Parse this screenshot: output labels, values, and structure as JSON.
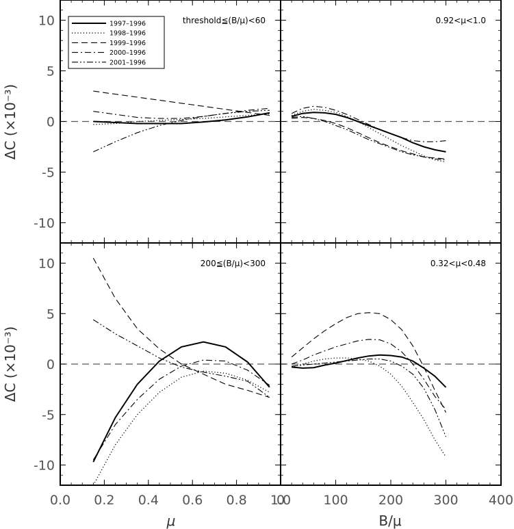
{
  "axes_titles": {
    "ylabel": "ΔC (×10⁻³)",
    "xlabel_left": "μ",
    "xlabel_right": "B/μ"
  },
  "chart_data": [
    {
      "type": "line",
      "panel": "top-left",
      "annotation": "threshold≦(B/μ)<60",
      "xlim": [
        0.0,
        1.0
      ],
      "ylim": [
        -12,
        12
      ],
      "yticks": [
        -10,
        -5,
        0,
        5,
        10
      ],
      "legend": "top-left",
      "series": [
        {
          "name": "1997–1996",
          "style": "solid",
          "x": [
            0.15,
            0.25,
            0.35,
            0.45,
            0.55,
            0.65,
            0.75,
            0.85,
            0.95
          ],
          "y": [
            0.0,
            -0.1,
            -0.2,
            -0.2,
            -0.2,
            -0.05,
            0.15,
            0.45,
            0.85
          ]
        },
        {
          "name": "1998–1996",
          "style": "dotted",
          "x": [
            0.15,
            0.25,
            0.35,
            0.45,
            0.55,
            0.65,
            0.75,
            0.85,
            0.95
          ],
          "y": [
            -0.3,
            -0.2,
            0.0,
            0.1,
            0.2,
            0.3,
            0.45,
            0.6,
            0.75
          ]
        },
        {
          "name": "1999–1996",
          "style": "dashed",
          "x": [
            0.15,
            0.25,
            0.35,
            0.45,
            0.55,
            0.65,
            0.75,
            0.85,
            0.95
          ],
          "y": [
            3.0,
            2.7,
            2.4,
            2.1,
            1.8,
            1.5,
            1.2,
            0.9,
            0.6
          ]
        },
        {
          "name": "2000–1996",
          "style": "dashdot",
          "x": [
            0.15,
            0.25,
            0.35,
            0.45,
            0.55,
            0.65,
            0.75,
            0.85,
            0.95
          ],
          "y": [
            1.0,
            0.7,
            0.4,
            0.3,
            0.3,
            0.5,
            0.8,
            1.1,
            1.3
          ]
        },
        {
          "name": "2001–1996",
          "style": "dashdotdot",
          "x": [
            0.15,
            0.25,
            0.35,
            0.45,
            0.55,
            0.65,
            0.75,
            0.85,
            0.95
          ],
          "y": [
            -3.0,
            -2.0,
            -1.1,
            -0.4,
            0.1,
            0.5,
            0.8,
            1.0,
            1.1
          ]
        }
      ]
    },
    {
      "type": "line",
      "panel": "top-right",
      "annotation": "0.92<μ<1.0",
      "xlim": [
        0,
        400
      ],
      "ylim": [
        -12,
        12
      ],
      "yticks": [
        -10,
        -5,
        0,
        5,
        10
      ],
      "series": [
        {
          "name": "1997–1996",
          "style": "solid",
          "x": [
            20,
            40,
            60,
            80,
            100,
            120,
            140,
            160,
            180,
            200,
            220,
            240,
            260,
            280,
            300
          ],
          "y": [
            0.5,
            0.8,
            0.9,
            0.85,
            0.7,
            0.4,
            0.0,
            -0.4,
            -0.8,
            -1.2,
            -1.6,
            -2.1,
            -2.5,
            -2.8,
            -3.0
          ]
        },
        {
          "name": "1998–1996",
          "style": "dotted",
          "x": [
            20,
            40,
            60,
            80,
            100,
            120,
            140,
            160,
            180,
            200,
            220,
            240,
            260,
            280,
            300
          ],
          "y": [
            0.6,
            1.0,
            1.2,
            1.1,
            0.9,
            0.5,
            0.0,
            -0.6,
            -1.2,
            -1.8,
            -2.4,
            -2.9,
            -3.4,
            -3.8,
            -4.0
          ]
        },
        {
          "name": "1999–1996",
          "style": "dashed",
          "x": [
            20,
            40,
            60,
            80,
            100,
            120,
            140,
            160,
            180,
            200,
            220,
            240,
            260,
            280,
            300
          ],
          "y": [
            0.3,
            0.4,
            0.3,
            0.1,
            -0.2,
            -0.6,
            -1.1,
            -1.6,
            -2.1,
            -2.5,
            -2.9,
            -3.2,
            -3.5,
            -3.6,
            -3.7
          ]
        },
        {
          "name": "2000–1996",
          "style": "dashdot",
          "x": [
            20,
            40,
            60,
            80,
            100,
            120,
            140,
            160,
            180,
            200,
            220,
            240,
            260,
            280,
            300
          ],
          "y": [
            0.8,
            1.3,
            1.5,
            1.4,
            1.1,
            0.7,
            0.2,
            -0.3,
            -0.8,
            -1.2,
            -1.6,
            -1.9,
            -2.0,
            -2.0,
            -1.9
          ]
        },
        {
          "name": "2001–1996",
          "style": "dashdotdot",
          "x": [
            20,
            40,
            60,
            80,
            100,
            120,
            140,
            160,
            180,
            200,
            220,
            240,
            260,
            280,
            300
          ],
          "y": [
            0.4,
            0.5,
            0.3,
            0.0,
            -0.4,
            -0.8,
            -1.3,
            -1.8,
            -2.2,
            -2.6,
            -3.0,
            -3.3,
            -3.5,
            -3.7,
            -3.8
          ]
        }
      ]
    },
    {
      "type": "line",
      "panel": "bottom-left",
      "annotation": "200≦(B/μ)<300",
      "xlim": [
        0.0,
        1.0
      ],
      "ylim": [
        -12,
        12
      ],
      "xticks": [
        0.0,
        0.2,
        0.4,
        0.6,
        0.8,
        1.0
      ],
      "yticks": [
        -10,
        -5,
        0,
        5,
        10
      ],
      "series": [
        {
          "name": "1997–1996",
          "style": "solid",
          "x": [
            0.15,
            0.25,
            0.35,
            0.45,
            0.55,
            0.65,
            0.75,
            0.85,
            0.95
          ],
          "y": [
            -9.7,
            -5.3,
            -2.0,
            0.3,
            1.7,
            2.2,
            1.7,
            0.2,
            -2.3
          ]
        },
        {
          "name": "1998–1996",
          "style": "dotted",
          "x": [
            0.15,
            0.25,
            0.35,
            0.45,
            0.55,
            0.65,
            0.75,
            0.85,
            0.95
          ],
          "y": [
            -12.0,
            -8.0,
            -5.0,
            -2.8,
            -1.3,
            -0.7,
            -0.9,
            -1.6,
            -2.8
          ]
        },
        {
          "name": "1999–1996",
          "style": "dashed",
          "x": [
            0.15,
            0.25,
            0.35,
            0.45,
            0.55,
            0.65,
            0.75,
            0.85,
            0.95
          ],
          "y": [
            10.5,
            6.5,
            3.5,
            1.5,
            0.0,
            -1.0,
            -2.0,
            -2.6,
            -3.3
          ]
        },
        {
          "name": "2000–1996",
          "style": "dashdot",
          "x": [
            0.15,
            0.25,
            0.35,
            0.45,
            0.55,
            0.65,
            0.75,
            0.85,
            0.95
          ],
          "y": [
            -9.5,
            -6.0,
            -3.5,
            -1.5,
            -0.2,
            0.4,
            0.3,
            -0.6,
            -2.1
          ]
        },
        {
          "name": "2001–1996",
          "style": "dashdotdot",
          "x": [
            0.15,
            0.25,
            0.35,
            0.45,
            0.55,
            0.65,
            0.75,
            0.85,
            0.95
          ],
          "y": [
            4.4,
            3.0,
            1.8,
            0.6,
            -0.3,
            -0.8,
            -1.2,
            -1.7,
            -3.3
          ]
        }
      ]
    },
    {
      "type": "line",
      "panel": "bottom-right",
      "annotation": "0.32<μ<0.48",
      "xlim": [
        0,
        400
      ],
      "ylim": [
        -12,
        12
      ],
      "xticks": [
        0,
        100,
        200,
        300,
        400
      ],
      "yticks": [
        -10,
        -5,
        0,
        5,
        10
      ],
      "series": [
        {
          "name": "1997–1996",
          "style": "solid",
          "x": [
            20,
            40,
            60,
            80,
            100,
            120,
            140,
            160,
            180,
            200,
            220,
            240,
            260,
            280,
            300
          ],
          "y": [
            -0.3,
            -0.4,
            -0.35,
            -0.1,
            0.1,
            0.35,
            0.6,
            0.8,
            0.9,
            0.85,
            0.7,
            0.3,
            -0.4,
            -1.2,
            -2.3
          ]
        },
        {
          "name": "1998–1996",
          "style": "dotted",
          "x": [
            20,
            40,
            60,
            80,
            100,
            120,
            140,
            160,
            180,
            200,
            220,
            240,
            260,
            280,
            300
          ],
          "y": [
            -0.3,
            0.0,
            0.3,
            0.5,
            0.6,
            0.6,
            0.5,
            0.3,
            -0.2,
            -1.0,
            -2.2,
            -3.8,
            -5.5,
            -7.5,
            -9.2
          ]
        },
        {
          "name": "1999–1996",
          "style": "dashed",
          "x": [
            20,
            40,
            60,
            80,
            100,
            120,
            140,
            160,
            180,
            200,
            220,
            240,
            260,
            280,
            300
          ],
          "y": [
            0.7,
            1.6,
            2.5,
            3.3,
            4.0,
            4.6,
            5.0,
            5.1,
            5.0,
            4.4,
            3.4,
            1.8,
            -0.3,
            -2.6,
            -4.8
          ]
        },
        {
          "name": "2000–1996",
          "style": "dashdot",
          "x": [
            20,
            40,
            60,
            80,
            100,
            120,
            140,
            160,
            180,
            200,
            220,
            240,
            260,
            280,
            300
          ],
          "y": [
            0.0,
            0.4,
            0.9,
            1.3,
            1.7,
            2.0,
            2.3,
            2.45,
            2.4,
            2.0,
            1.2,
            0.0,
            -1.5,
            -3.2,
            -4.5
          ]
        },
        {
          "name": "2001–1996",
          "style": "dashdotdot",
          "x": [
            20,
            40,
            60,
            80,
            100,
            120,
            140,
            160,
            180,
            200,
            220,
            240,
            260,
            280,
            300
          ],
          "y": [
            -0.2,
            -0.1,
            0.0,
            0.1,
            0.2,
            0.3,
            0.4,
            0.5,
            0.5,
            0.3,
            -0.2,
            -1.0,
            -2.4,
            -4.5,
            -7.2
          ]
        }
      ]
    }
  ]
}
